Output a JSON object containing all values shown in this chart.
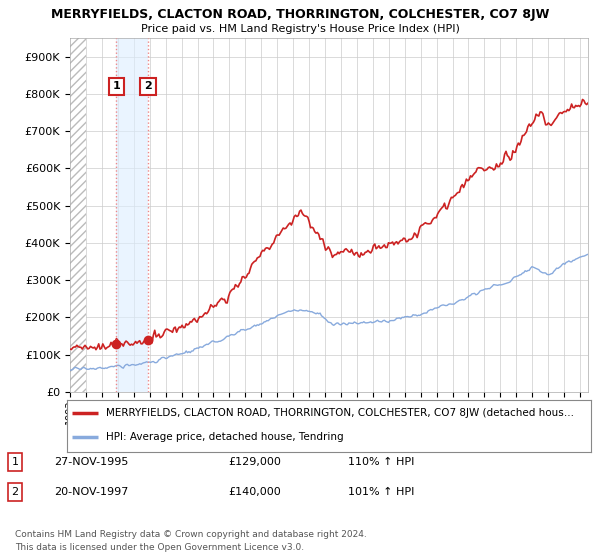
{
  "title": "MERRYFIELDS, CLACTON ROAD, THORRINGTON, COLCHESTER, CO7 8JW",
  "subtitle": "Price paid vs. HM Land Registry's House Price Index (HPI)",
  "xlim_start": 1993.0,
  "xlim_end": 2025.5,
  "ylim": [
    0,
    950000
  ],
  "yticks": [
    0,
    100000,
    200000,
    300000,
    400000,
    500000,
    600000,
    700000,
    800000,
    900000
  ],
  "ytick_labels": [
    "£0",
    "£100K",
    "£200K",
    "£300K",
    "£400K",
    "£500K",
    "£600K",
    "£700K",
    "£800K",
    "£900K"
  ],
  "sale1_x": 1995.91,
  "sale1_y": 129000,
  "sale2_x": 1997.89,
  "sale2_y": 140000,
  "legend_line1": "MERRYFIELDS, CLACTON ROAD, THORRINGTON, COLCHESTER, CO7 8JW (detached hous…",
  "legend_line2": "HPI: Average price, detached house, Tendring",
  "footer1": "Contains HM Land Registry data © Crown copyright and database right 2024.",
  "footer2": "This data is licensed under the Open Government Licence v3.0.",
  "table_row1": [
    "1",
    "27-NOV-1995",
    "£129,000",
    "110% ↑ HPI"
  ],
  "table_row2": [
    "2",
    "20-NOV-1997",
    "£140,000",
    "101% ↑ HPI"
  ],
  "bg_color": "#ffffff",
  "grid_color": "#cccccc",
  "red_line_color": "#cc2222",
  "blue_line_color": "#88aadd",
  "dot_color": "#cc2222",
  "dashed_red": "#ee8888",
  "box_red": "#cc2222",
  "shade_blue": "#ddeeff",
  "hatch_color": "#bbbbbb"
}
